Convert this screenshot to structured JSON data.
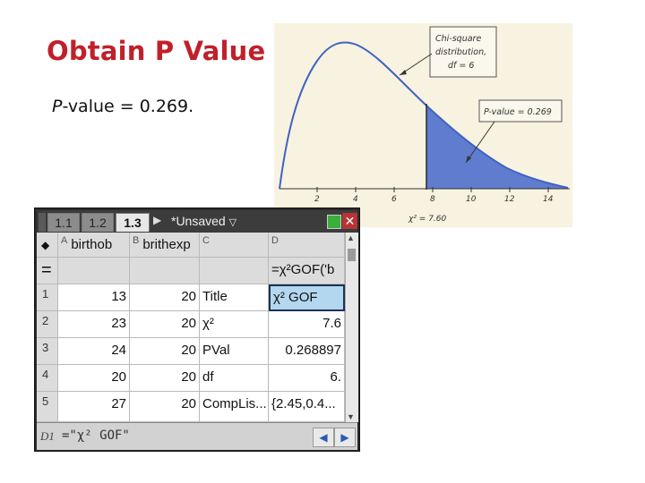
{
  "slide": {
    "title": "Obtain P Value",
    "p_italic": "P",
    "p_rest": "-value = 0.269."
  },
  "figure": {
    "annotation_curve_lines": [
      "Chi-square",
      "distribution,",
      "df = 6"
    ],
    "annotation_p": "P-value = 0.269",
    "x_ticks": [
      "2",
      "4",
      "6",
      "8",
      "10",
      "12",
      "14"
    ],
    "chi_label": "χ² = 7.60",
    "curve_color": "#4a6fc8",
    "shade_color": "#5f7ccf"
  },
  "calc": {
    "tabs": [
      "1.1",
      "1.2",
      "1.3"
    ],
    "doc_name": "*Unsaved",
    "columns": [
      {
        "letter": "A",
        "name": "birthob"
      },
      {
        "letter": "B",
        "name": "brithexp"
      },
      {
        "letter": "C",
        "name": ""
      },
      {
        "letter": "D",
        "name": ""
      }
    ],
    "formula_row": {
      "label": "=",
      "d": "=χ²GOF('b"
    },
    "rows": [
      {
        "n": "1",
        "a": "13",
        "b": "20",
        "c": "Title",
        "d": "χ² GOF"
      },
      {
        "n": "2",
        "a": "23",
        "b": "20",
        "c": "χ²",
        "d": "7.6"
      },
      {
        "n": "3",
        "a": "24",
        "b": "20",
        "c": "PVal",
        "d": "0.268897"
      },
      {
        "n": "4",
        "a": "20",
        "b": "20",
        "c": "df",
        "d": "6."
      },
      {
        "n": "5",
        "a": "27",
        "b": "20",
        "c": "CompLis...",
        "d": "{2.45,0.4..."
      }
    ],
    "entry_label": "D1",
    "entry_text": "=\"χ² GOF\""
  }
}
